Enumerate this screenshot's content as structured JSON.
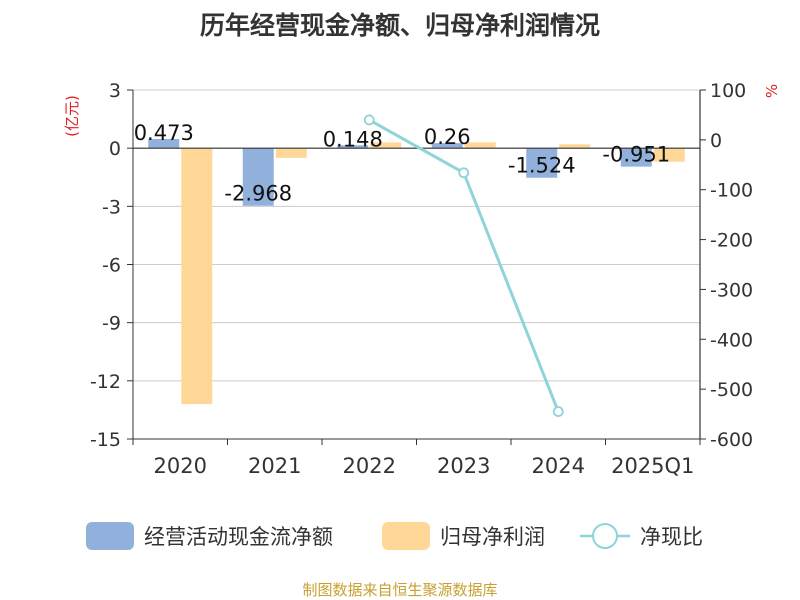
{
  "title": "历年经营现金净额、归母净利润情况",
  "source": "制图数据来自恒生聚源数据库",
  "colors": {
    "cash": "#91b0dc",
    "profit": "#ffd898",
    "ratio": "#8fd4d9",
    "unit": "#dd2222",
    "source": "#c8a030",
    "grid": "#cccccc",
    "axis": "#333333"
  },
  "chart_data": {
    "type": "bar",
    "categories": [
      "2020",
      "2021",
      "2022",
      "2023",
      "2024",
      "2025Q1"
    ],
    "series": [
      {
        "name": "经营活动现金流净额",
        "type": "bar",
        "axis": "left",
        "values": [
          0.473,
          -2.968,
          0.148,
          0.26,
          -1.524,
          -0.951
        ],
        "labels": [
          "0.473",
          "-2.968",
          "0.148",
          "0.26",
          "-1.524",
          "-0.951"
        ]
      },
      {
        "name": "归母净利润",
        "type": "bar",
        "axis": "left",
        "values": [
          -13.2,
          -0.5,
          0.3,
          0.3,
          0.2,
          -0.7
        ]
      },
      {
        "name": "净现比",
        "type": "line",
        "axis": "right",
        "values": [
          null,
          null,
          40,
          -66,
          -545,
          null
        ]
      }
    ],
    "y_left": {
      "label": "(亿元)",
      "ylim": [
        -15,
        3
      ],
      "ticks": [
        "3",
        "0",
        "-3",
        "-6",
        "-9",
        "-12",
        "-15"
      ]
    },
    "y_right": {
      "label": "%",
      "ylim": [
        -600,
        100
      ],
      "ticks": [
        "100",
        "0",
        "-100",
        "-200",
        "-300",
        "-400",
        "-500",
        "-600"
      ]
    },
    "grid": true,
    "legend_position": "bottom"
  }
}
